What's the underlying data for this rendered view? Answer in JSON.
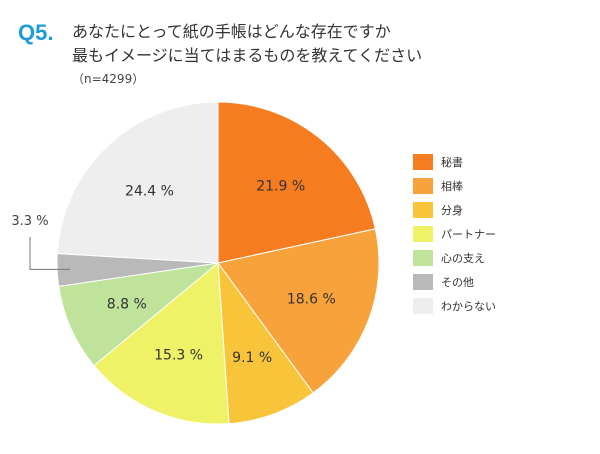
{
  "question": {
    "number": "Q5.",
    "line1": "あなたにとって紙の手帳はどんな存在ですか",
    "line2": "最もイメージに当てはまるものを教えてください",
    "sample": "（n=4299）"
  },
  "chart_data": {
    "type": "pie",
    "start": "12 o'clock",
    "direction": "clockwise",
    "legend_position": "right",
    "slices": [
      {
        "label": "秘書",
        "value": 21.9,
        "value_label": "21.9 %",
        "color": "#f57c1f"
      },
      {
        "label": "相棒",
        "value": 18.6,
        "value_label": "18.6 %",
        "color": "#f8a23b"
      },
      {
        "label": "分身",
        "value": 9.1,
        "value_label": "9.1 %",
        "color": "#f8c53a"
      },
      {
        "label": "パートナー",
        "value": 15.3,
        "value_label": "15.3 %",
        "color": "#eff267"
      },
      {
        "label": "心の支え",
        "value": 8.8,
        "value_label": "8.8 %",
        "color": "#bfe39a"
      },
      {
        "label": "その他",
        "value": 3.3,
        "value_label": "3.3 %",
        "color": "#b9b9b9"
      },
      {
        "label": "わからない",
        "value": 24.4,
        "value_label": "24.4 %",
        "color": "#eeeeee"
      }
    ]
  }
}
